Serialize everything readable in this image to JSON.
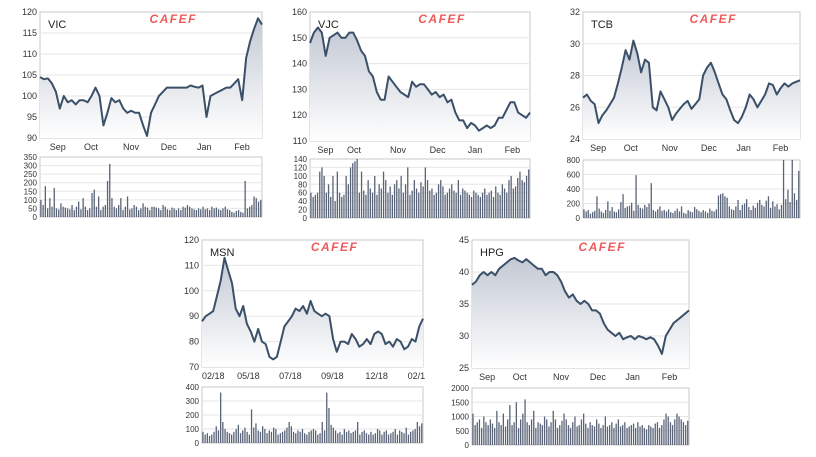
{
  "watermark": "CAFEF",
  "colors": {
    "line": "#3b5068",
    "volume": "#5a6478",
    "area_top": "#c3c9d4",
    "grid": "#e6e6e6",
    "frame": "#c8c8c8"
  },
  "chart_data": [
    {
      "type": "area",
      "ticker": "VIC",
      "yticks": [
        90,
        95,
        100,
        105,
        110,
        115,
        120
      ],
      "ylim": [
        90,
        120
      ],
      "xlabels": [
        "Sep",
        "Oct",
        "Nov",
        "Dec",
        "Jan",
        "Feb"
      ],
      "series": [
        {
          "values": [
            104.5,
            104,
            104.2,
            103,
            101,
            97,
            100,
            98.5,
            99,
            98,
            99,
            99,
            98.5,
            100,
            102,
            100,
            93,
            96,
            99.5,
            98.5,
            99,
            97,
            96,
            96.5,
            96,
            96,
            93,
            90.5,
            96,
            98,
            100,
            101,
            102,
            102,
            102,
            102,
            102,
            102,
            102.5,
            102.2,
            102,
            102.5,
            95,
            100,
            100.5,
            101,
            101.5,
            102,
            102,
            103,
            104,
            99,
            109,
            113,
            116,
            118.5,
            117
          ]
        }
      ],
      "volume": {
        "yticks": [
          0,
          50,
          100,
          150,
          200,
          250,
          300,
          350
        ],
        "ylim": [
          0,
          350
        ],
        "values": [
          100,
          70,
          180,
          50,
          110,
          60,
          170,
          50,
          45,
          80,
          60,
          55,
          50,
          45,
          70,
          40,
          60,
          90,
          45,
          110,
          60,
          40,
          50,
          140,
          160,
          60,
          120,
          40,
          60,
          70,
          210,
          310,
          110,
          60,
          50,
          70,
          110,
          40,
          60,
          120,
          45,
          50,
          70,
          60,
          40,
          50,
          80,
          60,
          55,
          40,
          60,
          60,
          55,
          50,
          40,
          70,
          60,
          45,
          40,
          55,
          50,
          40,
          50,
          40,
          60,
          55,
          70,
          60,
          50,
          45,
          40,
          50,
          45,
          60,
          45,
          50,
          40,
          60,
          50,
          55,
          45,
          40,
          50,
          60,
          45,
          40,
          30,
          25,
          35,
          40,
          30,
          25,
          210,
          50,
          60,
          70,
          120,
          110,
          90,
          100
        ]
      }
    },
    {
      "type": "area",
      "ticker": "VJC",
      "yticks": [
        110,
        120,
        130,
        140,
        150,
        160
      ],
      "ylim": [
        110,
        160
      ],
      "xlabels": [
        "Sep",
        "Oct",
        "Nov",
        "Dec",
        "Jan",
        "Feb"
      ],
      "series": [
        {
          "values": [
            148,
            152,
            154,
            152,
            143,
            150,
            151,
            152,
            150,
            150,
            152,
            152,
            149,
            145,
            143,
            137,
            135,
            129,
            126,
            126,
            135,
            133,
            131,
            129,
            128,
            127,
            133,
            131,
            132,
            132,
            130,
            128,
            129,
            127,
            128,
            125,
            126,
            121,
            118,
            118,
            115,
            117,
            116,
            114,
            115,
            116,
            115,
            116,
            119,
            119,
            122,
            125,
            125,
            121,
            120,
            119,
            121
          ]
        }
      ],
      "volume": {
        "yticks": [
          0,
          20,
          40,
          60,
          80,
          100,
          120,
          140
        ],
        "ylim": [
          0,
          140
        ],
        "values": [
          60,
          50,
          55,
          60,
          110,
          120,
          100,
          60,
          80,
          50,
          100,
          40,
          110,
          60,
          50,
          55,
          100,
          80,
          120,
          130,
          135,
          140,
          60,
          110,
          65,
          55,
          90,
          70,
          60,
          100,
          55,
          80,
          70,
          110,
          90,
          60,
          75,
          55,
          80,
          90,
          70,
          100,
          60,
          80,
          120,
          55,
          65,
          90,
          70,
          60,
          85,
          75,
          120,
          90,
          65,
          70,
          55,
          60,
          80,
          90,
          75,
          55,
          60,
          70,
          80,
          65,
          60,
          90,
          55,
          70,
          65,
          60,
          55,
          50,
          65,
          60,
          55,
          50,
          60,
          70,
          55,
          60,
          65,
          50,
          75,
          60,
          55,
          80,
          70,
          60,
          90,
          100,
          70,
          75,
          95,
          110,
          90,
          85,
          100,
          115
        ]
      }
    },
    {
      "type": "area",
      "ticker": "TCB",
      "yticks": [
        24,
        26,
        28,
        30,
        32
      ],
      "ylim": [
        24,
        32
      ],
      "xlabels": [
        "Sep",
        "Oct",
        "Nov",
        "Dec",
        "Jan",
        "Feb"
      ],
      "series": [
        {
          "values": [
            26.6,
            26.8,
            26.4,
            26.2,
            25.0,
            25.5,
            25.8,
            26.2,
            26.6,
            27.5,
            28.5,
            29.6,
            29.0,
            30.2,
            29.4,
            28.2,
            29.0,
            28.8,
            26.0,
            25.8,
            27.0,
            26.5,
            26.0,
            25.2,
            25.6,
            25.9,
            26.2,
            26.4,
            25.9,
            26.2,
            26.5,
            28.0,
            28.5,
            28.8,
            28.2,
            27.5,
            26.8,
            26.5,
            25.8,
            25.2,
            25.0,
            25.4,
            26.0,
            26.8,
            26.5,
            26.0,
            26.4,
            26.8,
            27.5,
            27.4,
            26.8,
            27.2,
            27.5,
            27.3,
            27.5,
            27.6,
            27.7
          ]
        }
      ],
      "volume": {
        "yticks": [
          0,
          200,
          400,
          600,
          800
        ],
        "ylim": [
          0,
          800
        ],
        "values": [
          120,
          90,
          110,
          60,
          80,
          100,
          300,
          130,
          90,
          70,
          110,
          230,
          100,
          150,
          90,
          80,
          120,
          220,
          330,
          140,
          160,
          170,
          210,
          100,
          590,
          180,
          140,
          130,
          180,
          150,
          200,
          480,
          110,
          90,
          120,
          160,
          100,
          110,
          90,
          120,
          80,
          70,
          100,
          130,
          90,
          160,
          70,
          60,
          110,
          90,
          80,
          150,
          120,
          100,
          80,
          110,
          90,
          70,
          130,
          100,
          90,
          120,
          310,
          330,
          340,
          300,
          280,
          160,
          120,
          110,
          160,
          250,
          110,
          180,
          200,
          260,
          150,
          110,
          170,
          140,
          210,
          250,
          180,
          160,
          240,
          300,
          140,
          230,
          160,
          190,
          120,
          180,
          800,
          260,
          390,
          220,
          800,
          340,
          250,
          650
        ]
      }
    },
    {
      "type": "area",
      "ticker": "MSN",
      "yticks": [
        70,
        80,
        90,
        100,
        110,
        120
      ],
      "ylim": [
        70,
        120
      ],
      "xlabels": [
        "02/18",
        "05/18",
        "07/18",
        "09/18",
        "12/18",
        "02/1"
      ],
      "series": [
        {
          "values": [
            88,
            90,
            91,
            92,
            98,
            104,
            113,
            108,
            103,
            93,
            90,
            94,
            87,
            84,
            80,
            85,
            80,
            79,
            74,
            73,
            74,
            80,
            86,
            88,
            90,
            93,
            92,
            94,
            91,
            96,
            92,
            91,
            90,
            91,
            90,
            81,
            76,
            80,
            80,
            79,
            83,
            81,
            78,
            79,
            81,
            79,
            83,
            84,
            83,
            79,
            80,
            78,
            81,
            80,
            77,
            78,
            81,
            80,
            86,
            89
          ]
        }
      ],
      "volume": {
        "yticks": [
          0,
          100,
          200,
          300,
          400
        ],
        "ylim": [
          0,
          400
        ],
        "values": [
          80,
          60,
          70,
          50,
          60,
          80,
          120,
          90,
          360,
          150,
          100,
          80,
          70,
          60,
          80,
          100,
          130,
          70,
          90,
          110,
          80,
          60,
          240,
          110,
          140,
          90,
          80,
          120,
          100,
          70,
          90,
          80,
          110,
          100,
          60,
          70,
          80,
          90,
          110,
          150,
          120,
          80,
          70,
          90,
          80,
          100,
          70,
          60,
          80,
          90,
          100,
          90,
          60,
          70,
          150,
          90,
          360,
          250,
          130,
          110,
          90,
          70,
          80,
          60,
          100,
          80,
          90,
          70,
          80,
          90,
          150,
          60,
          80,
          90,
          70,
          60,
          80,
          60,
          70,
          100,
          90,
          60,
          80,
          90,
          60,
          70,
          80,
          100,
          60,
          90,
          80,
          70,
          110,
          60,
          80,
          90,
          100,
          150,
          120,
          140
        ]
      }
    },
    {
      "type": "area",
      "ticker": "HPG",
      "yticks": [
        25,
        30,
        35,
        40,
        45
      ],
      "ylim": [
        25,
        45
      ],
      "xlabels": [
        "Sep",
        "Oct",
        "Nov",
        "Dec",
        "Jan",
        "Feb"
      ],
      "series": [
        {
          "values": [
            38,
            38.5,
            39.5,
            40,
            39.5,
            40,
            39.5,
            40.5,
            41,
            41.5,
            42,
            42.2,
            41.8,
            41.5,
            42,
            41.5,
            41,
            40.5,
            40.5,
            39.5,
            40,
            40,
            39.5,
            38.5,
            37,
            36,
            36.5,
            35.5,
            35,
            35.5,
            35,
            34,
            34,
            33.5,
            32,
            31,
            30.5,
            30,
            30.5,
            29.5,
            29.8,
            30,
            29.5,
            30,
            29.8,
            29.5,
            29.8,
            29.5,
            28.5,
            27.2,
            30,
            31,
            32,
            32.5,
            33,
            33.5,
            34
          ]
        }
      ],
      "volume": {
        "yticks": [
          0,
          500,
          1000,
          1500,
          2000
        ],
        "ylim": [
          0,
          2000
        ],
        "values": [
          1100,
          700,
          800,
          900,
          600,
          1000,
          800,
          700,
          900,
          750,
          600,
          1200,
          800,
          700,
          1100,
          650,
          900,
          1400,
          700,
          800,
          1500,
          600,
          900,
          1100,
          1600,
          800,
          700,
          900,
          1200,
          600,
          800,
          750,
          700,
          1000,
          900,
          650,
          800,
          1200,
          900,
          600,
          700,
          850,
          1100,
          900,
          700,
          600,
          800,
          1000,
          650,
          700,
          900,
          1100,
          750,
          600,
          800,
          700,
          650,
          900,
          750,
          600,
          700,
          1000,
          650,
          700,
          800,
          600,
          750,
          900,
          650,
          700,
          800,
          600,
          650,
          700,
          750,
          600,
          800,
          650,
          700,
          600,
          550,
          700,
          650,
          600,
          750,
          800,
          600,
          700,
          900,
          1100,
          1000,
          800,
          700,
          900,
          1100,
          1000,
          900,
          800,
          700,
          850
        ]
      }
    }
  ]
}
